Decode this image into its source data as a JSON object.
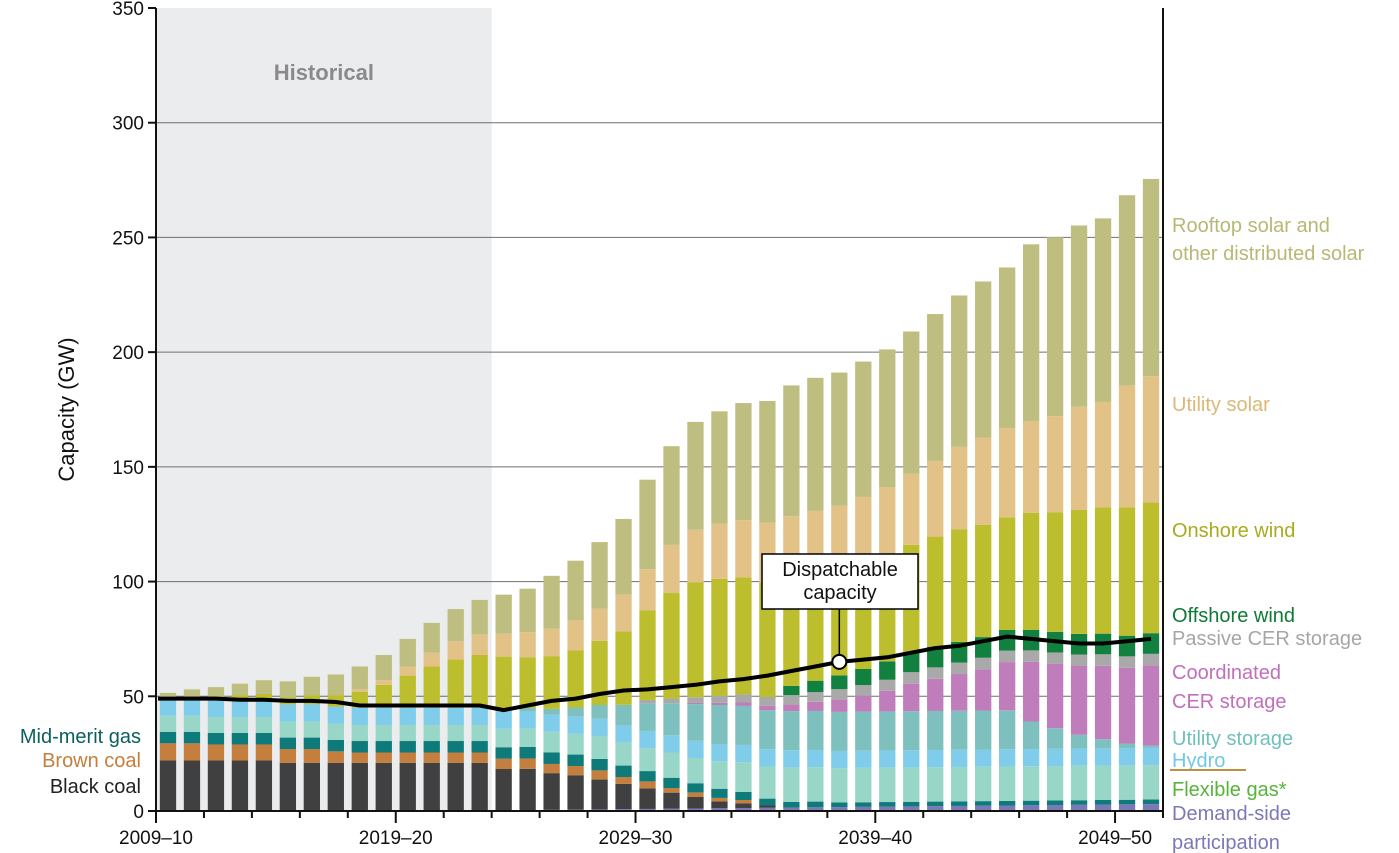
{
  "chart_data": {
    "type": "stacked-bar",
    "title": "",
    "ylabel": "Capacity (GW)",
    "xlabel": "",
    "ylim": [
      0,
      350
    ],
    "yticks": [
      0,
      50,
      100,
      150,
      200,
      250,
      300,
      350
    ],
    "xtick_labels": [
      {
        "label": "2009–10",
        "index": 0
      },
      {
        "label": "2019–20",
        "index": 10
      },
      {
        "label": "2029–30",
        "index": 20
      },
      {
        "label": "2039–40",
        "index": 30
      },
      {
        "label": "2049–50",
        "index": 40
      }
    ],
    "historical": {
      "label": "Historical",
      "bars": 14
    },
    "categories": [
      "2009–10",
      "2010–11",
      "2011–12",
      "2012–13",
      "2013–14",
      "2014–15",
      "2015–16",
      "2016–17",
      "2017–18",
      "2018–19",
      "2019–20",
      "2020–21",
      "2021–22",
      "2022–23",
      "2023–24",
      "2024–25",
      "2025–26",
      "2026–27",
      "2027–28",
      "2028–29",
      "2029–30",
      "2030–31",
      "2031–32",
      "2032–33",
      "2033–34",
      "2034–35",
      "2035–36",
      "2036–37",
      "2037–38",
      "2038–39",
      "2039–40",
      "2040–41",
      "2041–42",
      "2042–43",
      "2043–44",
      "2044–45",
      "2045–46",
      "2046–47",
      "2047–48",
      "2048–49",
      "2049–50",
      "2050–51"
    ],
    "series": [
      {
        "name": "Demand-side participation",
        "color": "#7b78b8",
        "values": [
          0,
          0,
          0,
          0,
          0,
          0,
          0,
          0,
          0,
          0,
          0,
          0,
          0,
          0,
          0.3,
          0.4,
          0.5,
          0.6,
          0.7,
          0.8,
          0.9,
          1,
          1.1,
          1.2,
          1.3,
          1.4,
          1.5,
          1.6,
          1.7,
          1.8,
          1.9,
          2,
          2.1,
          2.2,
          2.3,
          2.4,
          2.5,
          2.6,
          2.7,
          2.8,
          2.9,
          3
        ]
      },
      {
        "name": "Black coal",
        "color": "#404040",
        "values": [
          22,
          22,
          22,
          22,
          22,
          21,
          21,
          21,
          21,
          21,
          21,
          21,
          21,
          21,
          18,
          18,
          16,
          15,
          13,
          11,
          9,
          7,
          5,
          3,
          2,
          1,
          0,
          0,
          0,
          0,
          0,
          0,
          0,
          0,
          0,
          0,
          0,
          0,
          0,
          0,
          0,
          0
        ]
      },
      {
        "name": "Brown coal",
        "color": "#c47e3e",
        "values": [
          7.5,
          7.5,
          7,
          7,
          7,
          6,
          6,
          5,
          4.5,
          4.5,
          4.5,
          4.5,
          4.5,
          4.5,
          4.5,
          4.5,
          4,
          4,
          4,
          3,
          3,
          2,
          2,
          1.5,
          1.5,
          0,
          0,
          0,
          0,
          0,
          0,
          0,
          0,
          0,
          0,
          0,
          0,
          0,
          0,
          0,
          0,
          0
        ]
      },
      {
        "name": "Mid-merit gas",
        "color": "#0f7a7a",
        "values": [
          5,
          5,
          5,
          5,
          5,
          5,
          5,
          5,
          5,
          5,
          5,
          5,
          5,
          5,
          5,
          5,
          5,
          5,
          5,
          5,
          4.5,
          4.5,
          4,
          4,
          3.5,
          3,
          2.5,
          2.5,
          2,
          2,
          2,
          2,
          2,
          2,
          2,
          2,
          2,
          2,
          2,
          2,
          2,
          2
        ]
      },
      {
        "name": "Flexible gas*",
        "color": "#98d6c8",
        "values": [
          7,
          7,
          7,
          7,
          7,
          7,
          7,
          7,
          7,
          7,
          7,
          7,
          7,
          7,
          8,
          8,
          9,
          9,
          10,
          10,
          10,
          11,
          11,
          12,
          13,
          14,
          15,
          15,
          15,
          15,
          15,
          15,
          15,
          15,
          15,
          15,
          15,
          15,
          15,
          15,
          15,
          15
        ]
      },
      {
        "name": "Hydro",
        "color": "#7fcdea",
        "values": [
          7.5,
          7.5,
          7.5,
          7.5,
          7.5,
          7.5,
          7.5,
          7.5,
          7.5,
          7.5,
          7.5,
          7.5,
          7.5,
          7.5,
          7.5,
          7.5,
          7.5,
          7.5,
          7.5,
          7.5,
          7.5,
          7.5,
          7.5,
          7.5,
          7.5,
          7.5,
          7.5,
          7.5,
          7.5,
          7.5,
          7.5,
          7.5,
          7.5,
          7.5,
          7.5,
          7.5,
          7.5,
          7.5,
          7.5,
          7.5,
          7.5,
          7.5
        ]
      },
      {
        "name": "Utility storage",
        "color": "#7ec0bd",
        "values": [
          0,
          0,
          0,
          0,
          0,
          0,
          0,
          0,
          0,
          0,
          0,
          0,
          0,
          0,
          1,
          1.5,
          2.5,
          4,
          6,
          9,
          12,
          14,
          16,
          17,
          17,
          17,
          17,
          17,
          17,
          17,
          17,
          17,
          17,
          17,
          17,
          17,
          12,
          9,
          6,
          4,
          2,
          1
        ]
      },
      {
        "name": "Coordinated CER storage",
        "color": "#bf7ebb",
        "values": [
          0,
          0,
          0,
          0,
          0,
          0,
          0,
          0,
          0,
          0,
          0,
          0,
          0,
          0,
          0,
          0,
          0,
          0,
          0,
          0,
          0,
          0,
          0.5,
          1,
          1.5,
          2,
          3,
          4,
          5.5,
          7,
          9,
          12,
          14,
          16,
          18,
          21,
          26,
          28,
          30,
          32,
          33,
          35
        ]
      },
      {
        "name": "Passive CER storage",
        "color": "#a9a9a9",
        "values": [
          0,
          0,
          0,
          0,
          0,
          0,
          0,
          0,
          0,
          0,
          0,
          0,
          0,
          0,
          0,
          0,
          0,
          0,
          0,
          0,
          1.5,
          2,
          2.5,
          3,
          3.5,
          3.8,
          4,
          4.2,
          4.4,
          4.6,
          4.8,
          5,
          5,
          5,
          5,
          5,
          5,
          5,
          5,
          5,
          5,
          5
        ]
      },
      {
        "name": "Offshore wind",
        "color": "#12813f",
        "values": [
          0,
          0,
          0,
          0,
          0,
          0,
          0,
          0,
          0,
          0,
          0,
          0,
          0,
          0,
          0,
          0,
          0,
          0,
          0,
          0,
          0,
          0,
          0,
          0,
          0,
          0,
          4,
          5,
          6,
          7,
          8,
          8.5,
          9,
          9,
          9,
          9,
          9,
          9,
          9,
          9,
          9,
          9
        ]
      },
      {
        "name": "Onshore wind",
        "color": "#bcbe2e",
        "values": [
          0.5,
          1,
          1.5,
          2,
          2.5,
          3,
          4,
          5,
          7,
          10,
          14,
          18,
          21,
          23,
          23,
          22,
          23,
          25,
          28,
          32,
          39,
          46,
          50,
          51,
          51,
          50,
          46,
          45,
          44,
          45,
          46,
          47,
          48,
          49,
          49,
          49,
          51,
          52,
          54,
          55,
          56,
          57
        ]
      },
      {
        "name": "Utility solar",
        "color": "#e3c287",
        "values": [
          0,
          0,
          0,
          0,
          0,
          0,
          0,
          0,
          1,
          2,
          4,
          6,
          8,
          9,
          10,
          11,
          12,
          13,
          14,
          16,
          18,
          21,
          23,
          24,
          25,
          26,
          28,
          29,
          30,
          30,
          30,
          31,
          33,
          36,
          38,
          39,
          40,
          42,
          45,
          46,
          53,
          55
        ]
      },
      {
        "name": "Rooftop solar and other distributed solar",
        "color": "#bebe81",
        "values": [
          2,
          3,
          4,
          5,
          6,
          7,
          8,
          9,
          10,
          11,
          12,
          13,
          14,
          15,
          17,
          19,
          23,
          26,
          29,
          33,
          39,
          43,
          47,
          49,
          51,
          53,
          57,
          58,
          58,
          59,
          60,
          62,
          64,
          66,
          68,
          70,
          77,
          78,
          79,
          80,
          83,
          86
        ]
      }
    ],
    "line": {
      "name": "Dispatchable capacity",
      "color": "#000000",
      "values": [
        49,
        49,
        49,
        48.5,
        48.5,
        48,
        48,
        47.5,
        46,
        46,
        46,
        46,
        46,
        46,
        44,
        46,
        48,
        49,
        51,
        52.5,
        53,
        54,
        55,
        56.5,
        57.5,
        59,
        61,
        63,
        65,
        66,
        67,
        69,
        71,
        72,
        74,
        76,
        75,
        74,
        73,
        73,
        74,
        75
      ]
    },
    "legend_right": [
      {
        "label": "Rooftop solar and",
        "color": "#b8b875"
      },
      {
        "label": "other distributed solar",
        "color": "#b8b875"
      },
      {
        "label": "Utility solar",
        "color": "#dbb877"
      },
      {
        "label": "Onshore wind",
        "color": "#a9ab1f"
      },
      {
        "label": "Offshore wind",
        "color": "#0e7a36"
      },
      {
        "label": "Passive CER storage",
        "color": "#a6a6a6"
      },
      {
        "label": "Coordinated",
        "color": "#c16fbd"
      },
      {
        "label": "CER storage",
        "color": "#c16fbd"
      },
      {
        "label": "Utility storage",
        "color": "#6fc0bd"
      },
      {
        "label": "Hydro",
        "color": "#6fc7ea"
      },
      {
        "label": "Flexible gas*",
        "color": "#58b33a"
      },
      {
        "label": "Demand-side",
        "color": "#7b78b8"
      },
      {
        "label": "participation",
        "color": "#7b78b8"
      }
    ],
    "legend_left": [
      {
        "label": "Mid-merit gas",
        "color": "#0c5f5f"
      },
      {
        "label": "Brown coal",
        "color": "#c47e3e"
      },
      {
        "label": "Black coal",
        "color": "#222222"
      }
    ],
    "callout": {
      "line1": "Dispatchable",
      "line2": "capacity",
      "bar_index": 28
    }
  }
}
